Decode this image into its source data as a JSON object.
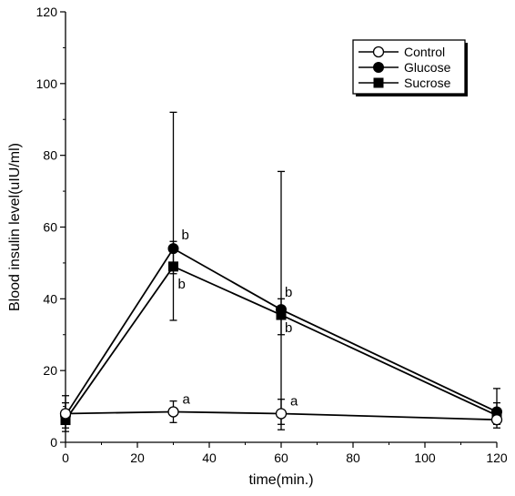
{
  "chart_data": {
    "type": "line",
    "xlabel": "time(min.)",
    "ylabel": "Blood insulin level(uIU/ml)",
    "xlim": [
      0,
      120
    ],
    "ylim": [
      0,
      120
    ],
    "x_ticks": [
      0,
      20,
      40,
      60,
      80,
      100,
      120
    ],
    "y_ticks": [
      0,
      20,
      40,
      60,
      80,
      100,
      120
    ],
    "grid": false,
    "legend_position": "top-right",
    "series": [
      {
        "name": "Control",
        "marker": "open-circle",
        "points": [
          {
            "x": 0,
            "y": 8,
            "err_low": 5,
            "err_high": 13
          },
          {
            "x": 30,
            "y": 8.5,
            "err_low": 5.5,
            "err_high": 11.5
          },
          {
            "x": 60,
            "y": 8,
            "err_low": 3.5,
            "err_high": 12
          },
          {
            "x": 120,
            "y": 6.3,
            "err_low": 4,
            "err_high": 8
          }
        ]
      },
      {
        "name": "Glucose",
        "marker": "filled-circle",
        "points": [
          {
            "x": 0,
            "y": 7.5,
            "err_low": 4,
            "err_high": 11
          },
          {
            "x": 30,
            "y": 54,
            "err_low": 47,
            "err_high": 92
          },
          {
            "x": 60,
            "y": 37,
            "err_low": 30,
            "err_high": 75.5
          },
          {
            "x": 120,
            "y": 8.5,
            "err_low": 5,
            "err_high": 15
          }
        ]
      },
      {
        "name": "Sucrose",
        "marker": "filled-square",
        "points": [
          {
            "x": 0,
            "y": 6.2,
            "err_low": 3,
            "err_high": 9
          },
          {
            "x": 30,
            "y": 49,
            "err_low": 34,
            "err_high": 56
          },
          {
            "x": 60,
            "y": 35.5,
            "err_low": 5,
            "err_high": 40
          },
          {
            "x": 120,
            "y": 7.5,
            "err_low": 5,
            "err_high": 11
          }
        ]
      }
    ],
    "annotations": [
      {
        "text": "a",
        "x": 30,
        "y": 8.5
      },
      {
        "text": "a",
        "x": 60,
        "y": 8
      },
      {
        "text": "b",
        "x": 30,
        "y": 54
      },
      {
        "text": "b",
        "x": 30,
        "y": 49
      },
      {
        "text": "b",
        "x": 60,
        "y": 37
      },
      {
        "text": "b",
        "x": 60,
        "y": 35.5
      }
    ]
  }
}
